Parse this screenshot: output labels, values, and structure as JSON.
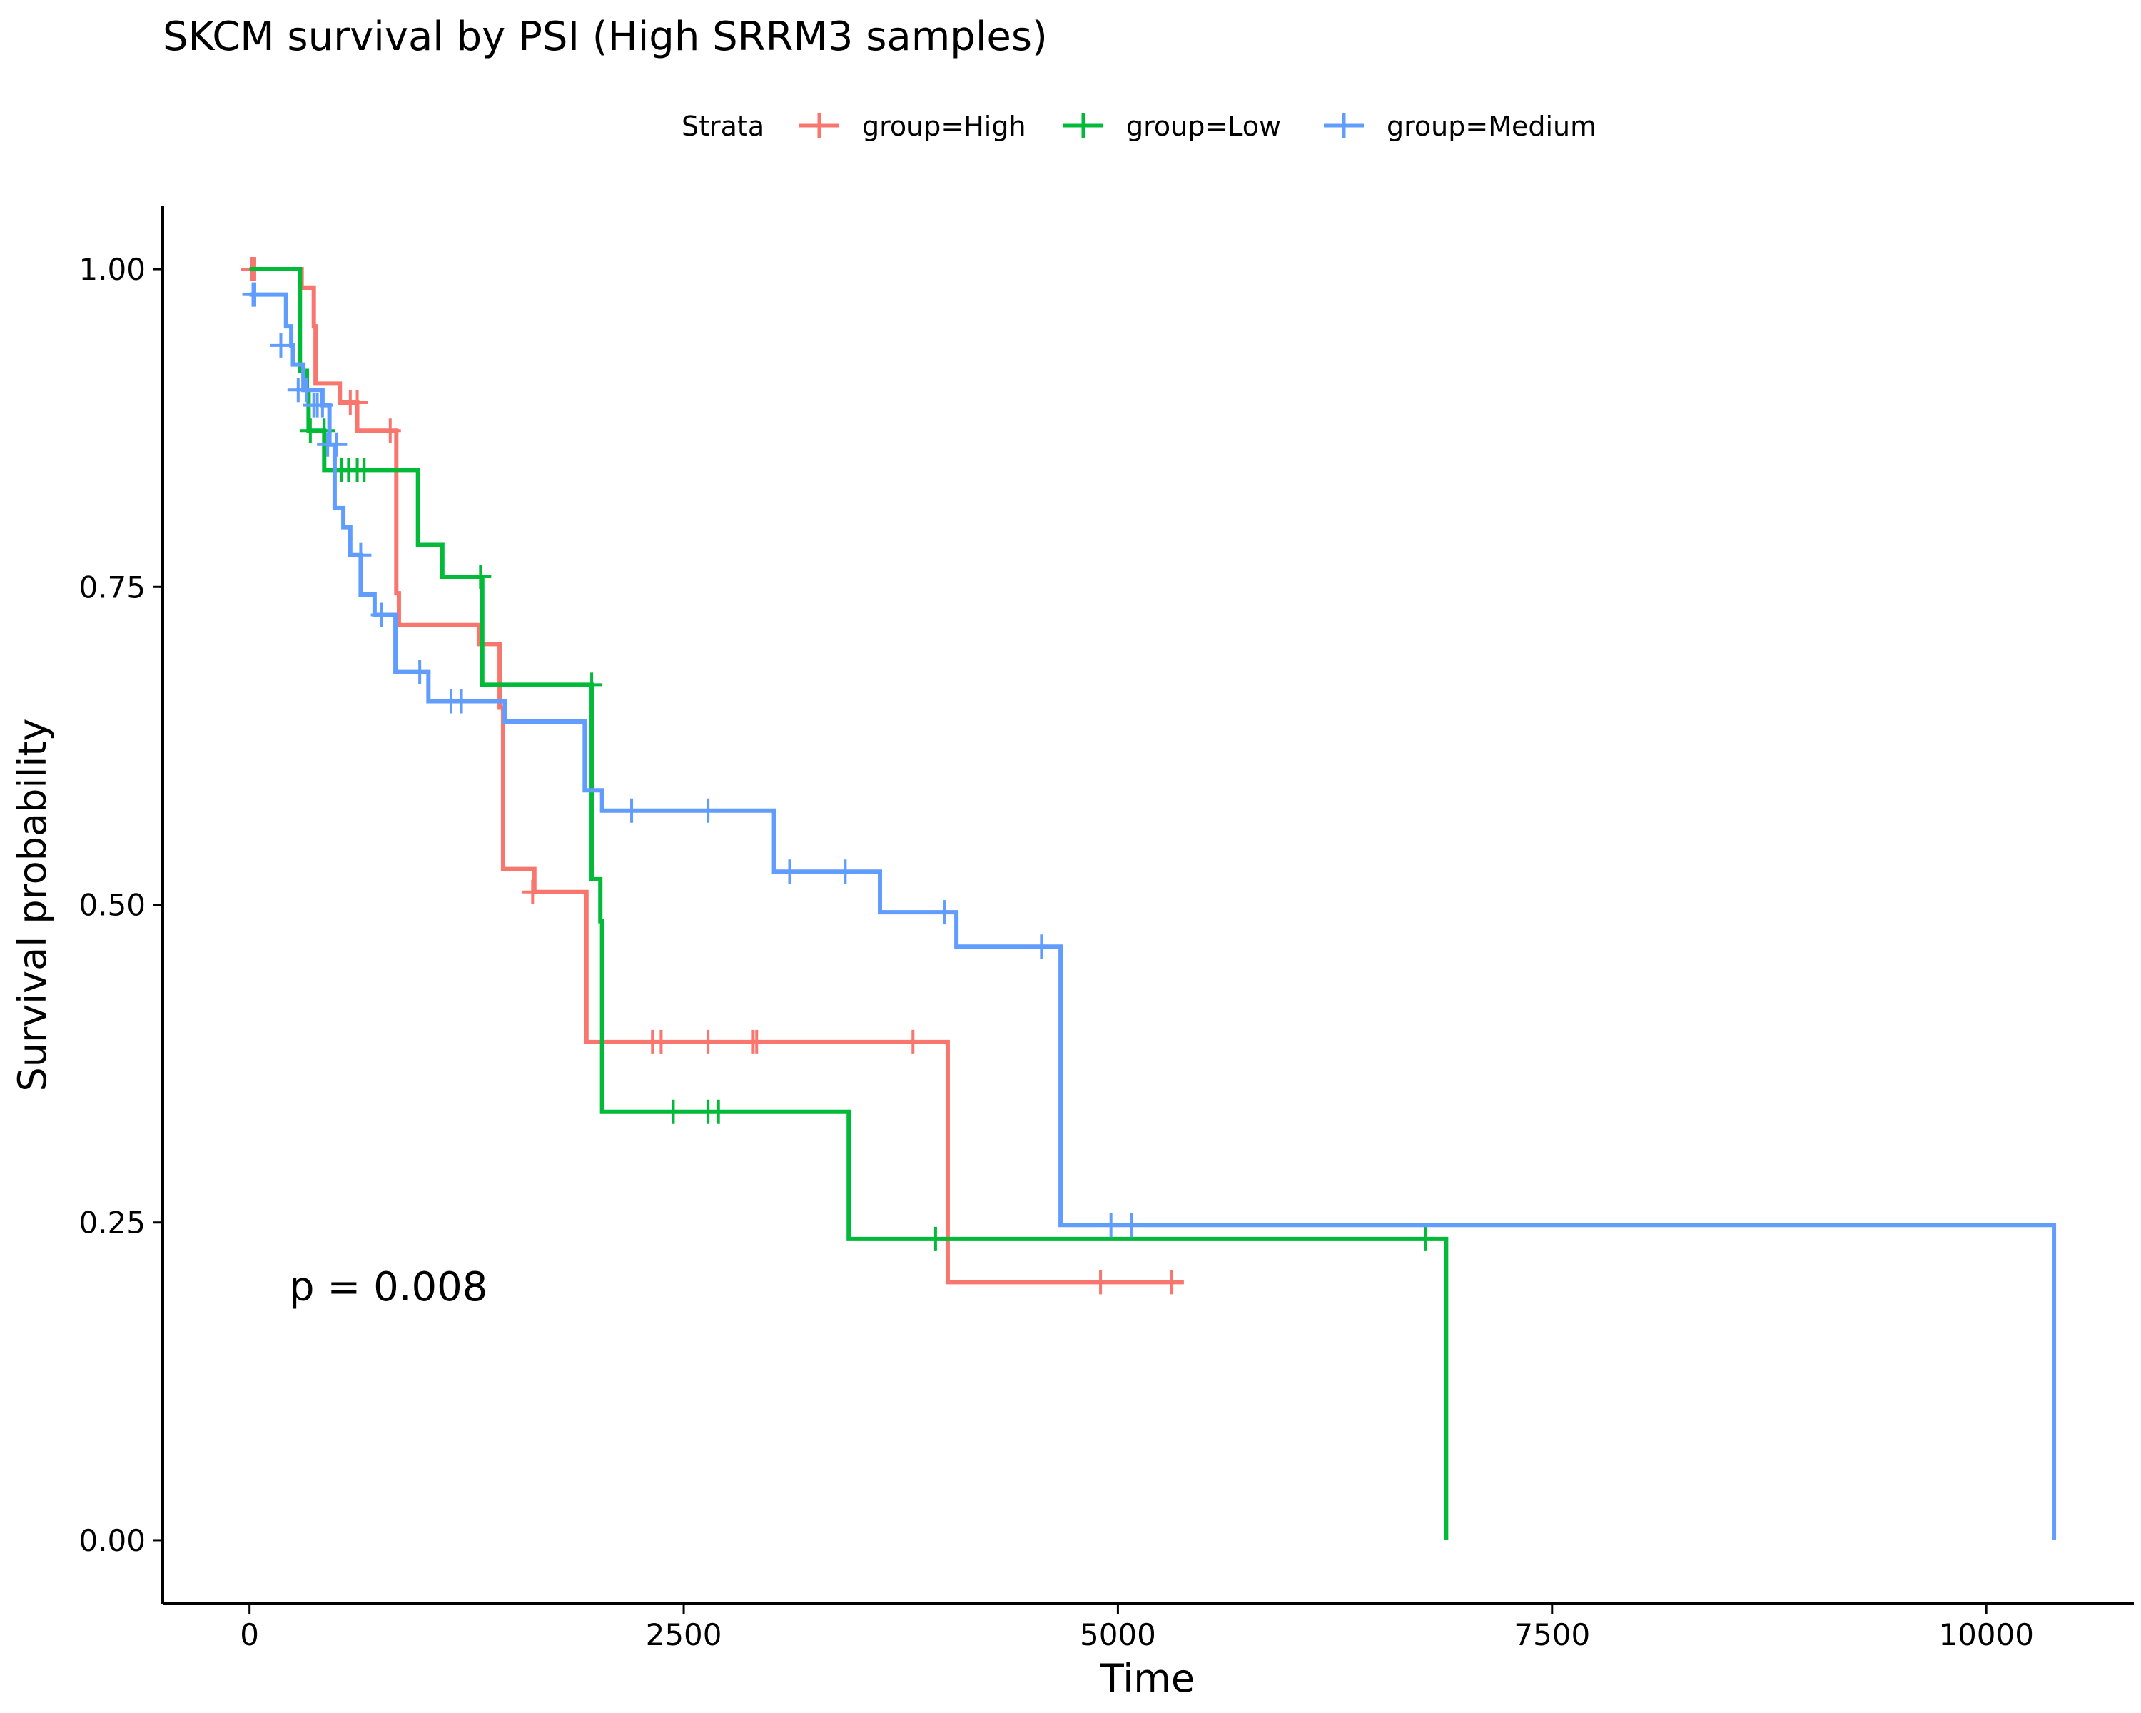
{
  "chart_data": {
    "type": "line",
    "subtype": "kaplan-meier step",
    "title": "SKCM survival by PSI (High SRRM3 samples)",
    "xlabel": "Time",
    "ylabel": "Survival probability",
    "xlim": [
      -500,
      10850
    ],
    "ylim": [
      -0.05,
      1.05
    ],
    "xticks": [
      0,
      2500,
      5000,
      7500,
      10000
    ],
    "xtick_labels": [
      "0",
      "2500",
      "5000",
      "7500",
      "10000"
    ],
    "yticks": [
      0,
      0.25,
      0.5,
      0.75,
      1.0
    ],
    "ytick_labels": [
      "0.00",
      "0.25",
      "0.50",
      "0.75",
      "1.00"
    ],
    "grid": false,
    "legend": {
      "title": "Strata",
      "position": "top",
      "entries": [
        "group=High",
        "group=Low",
        "group=Medium"
      ]
    },
    "annotation": "p = 0.008",
    "series": [
      {
        "name": "group=High",
        "color": "#F8766D",
        "steps": [
          [
            0,
            1.0
          ],
          [
            300,
            0.985
          ],
          [
            370,
            0.955
          ],
          [
            380,
            0.91
          ],
          [
            520,
            0.895
          ],
          [
            620,
            0.873
          ],
          [
            840,
            0.873
          ],
          [
            845,
            0.745
          ],
          [
            860,
            0.72
          ],
          [
            1310,
            0.72
          ],
          [
            1320,
            0.705
          ],
          [
            1430,
            0.705
          ],
          [
            1440,
            0.655
          ],
          [
            1460,
            0.528
          ],
          [
            1640,
            0.51
          ],
          [
            1930,
            0.51
          ],
          [
            1940,
            0.392
          ],
          [
            4010,
            0.392
          ],
          [
            4020,
            0.203
          ],
          [
            5380,
            0.203
          ]
        ],
        "censored": [
          [
            10,
            1.0
          ],
          [
            30,
            1.0
          ],
          [
            580,
            0.895
          ],
          [
            620,
            0.895
          ],
          [
            810,
            0.873
          ],
          [
            1630,
            0.51
          ],
          [
            2320,
            0.392
          ],
          [
            2370,
            0.392
          ],
          [
            2640,
            0.392
          ],
          [
            2900,
            0.392
          ],
          [
            2920,
            0.392
          ],
          [
            3820,
            0.392
          ],
          [
            4900,
            0.203
          ],
          [
            5310,
            0.203
          ]
        ]
      },
      {
        "name": "group=Low",
        "color": "#00BA38",
        "steps": [
          [
            0,
            1.0
          ],
          [
            280,
            1.0
          ],
          [
            290,
            0.92
          ],
          [
            330,
            0.905
          ],
          [
            340,
            0.873
          ],
          [
            420,
            0.873
          ],
          [
            430,
            0.842
          ],
          [
            960,
            0.842
          ],
          [
            970,
            0.783
          ],
          [
            1100,
            0.783
          ],
          [
            1110,
            0.758
          ],
          [
            1330,
            0.758
          ],
          [
            1340,
            0.673
          ],
          [
            1960,
            0.673
          ],
          [
            1970,
            0.52
          ],
          [
            2010,
            0.52
          ],
          [
            2020,
            0.487
          ],
          [
            2030,
            0.337
          ],
          [
            3440,
            0.337
          ],
          [
            3450,
            0.237
          ],
          [
            6880,
            0.237
          ],
          [
            6890,
            0.0
          ]
        ],
        "censored": [
          [
            350,
            0.873
          ],
          [
            430,
            0.873
          ],
          [
            530,
            0.842
          ],
          [
            570,
            0.842
          ],
          [
            620,
            0.842
          ],
          [
            660,
            0.842
          ],
          [
            1330,
            0.758
          ],
          [
            1970,
            0.673
          ],
          [
            2440,
            0.337
          ],
          [
            2640,
            0.337
          ],
          [
            2700,
            0.337
          ],
          [
            3950,
            0.237
          ],
          [
            6770,
            0.237
          ]
        ]
      },
      {
        "name": "group=Medium",
        "color": "#619CFF",
        "steps": [
          [
            0,
            0.98
          ],
          [
            200,
            0.98
          ],
          [
            210,
            0.955
          ],
          [
            240,
            0.94
          ],
          [
            250,
            0.925
          ],
          [
            310,
            0.905
          ],
          [
            420,
            0.893
          ],
          [
            460,
            0.862
          ],
          [
            490,
            0.812
          ],
          [
            540,
            0.797
          ],
          [
            580,
            0.775
          ],
          [
            640,
            0.744
          ],
          [
            720,
            0.728
          ],
          [
            830,
            0.728
          ],
          [
            840,
            0.683
          ],
          [
            1030,
            0.66
          ],
          [
            1460,
            0.66
          ],
          [
            1470,
            0.644
          ],
          [
            1920,
            0.644
          ],
          [
            1930,
            0.59
          ],
          [
            2030,
            0.574
          ],
          [
            3010,
            0.574
          ],
          [
            3020,
            0.526
          ],
          [
            3620,
            0.526
          ],
          [
            3630,
            0.494
          ],
          [
            4060,
            0.494
          ],
          [
            4070,
            0.467
          ],
          [
            4660,
            0.467
          ],
          [
            4670,
            0.248
          ],
          [
            10380,
            0.248
          ],
          [
            10390,
            0.0
          ]
        ],
        "censored": [
          [
            20,
            0.98
          ],
          [
            30,
            0.98
          ],
          [
            180,
            0.94
          ],
          [
            280,
            0.905
          ],
          [
            330,
            0.905
          ],
          [
            370,
            0.893
          ],
          [
            390,
            0.893
          ],
          [
            420,
            0.893
          ],
          [
            450,
            0.862
          ],
          [
            500,
            0.862
          ],
          [
            640,
            0.775
          ],
          [
            760,
            0.728
          ],
          [
            980,
            0.683
          ],
          [
            1160,
            0.66
          ],
          [
            1220,
            0.66
          ],
          [
            2200,
            0.574
          ],
          [
            2640,
            0.574
          ],
          [
            3110,
            0.526
          ],
          [
            3430,
            0.526
          ],
          [
            4000,
            0.494
          ],
          [
            4560,
            0.467
          ],
          [
            4960,
            0.248
          ],
          [
            5080,
            0.248
          ]
        ]
      }
    ]
  }
}
